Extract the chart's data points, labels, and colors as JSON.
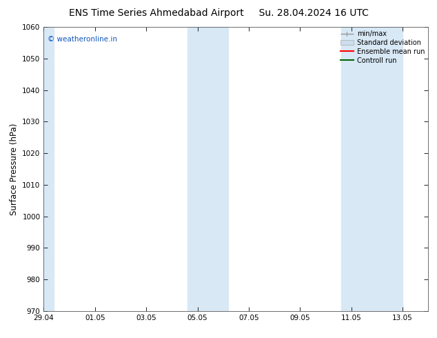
{
  "title_left": "ENS Time Series Ahmedabad Airport",
  "title_right": "Su. 28.04.2024 16 UTC",
  "ylabel": "Surface Pressure (hPa)",
  "ylim": [
    970,
    1060
  ],
  "yticks": [
    970,
    980,
    990,
    1000,
    1010,
    1020,
    1030,
    1040,
    1050,
    1060
  ],
  "xtick_labels": [
    "29.04",
    "01.05",
    "03.05",
    "05.05",
    "07.05",
    "09.05",
    "11.05",
    "13.05"
  ],
  "xtick_positions": [
    0,
    2,
    4,
    6,
    8,
    10,
    12,
    14
  ],
  "xlim": [
    0,
    15
  ],
  "shaded_bands": [
    {
      "x_start": 0.0,
      "x_end": 0.4
    },
    {
      "x_start": 5.6,
      "x_end": 7.2
    },
    {
      "x_start": 11.6,
      "x_end": 14.0
    }
  ],
  "bg_color": "#ffffff",
  "shade_color": "#d8e8f5",
  "legend_items": [
    {
      "label": "min/max",
      "color": "#999999",
      "lw": 1
    },
    {
      "label": "Standard deviation",
      "color": "#ccddef",
      "lw": 8
    },
    {
      "label": "Ensemble mean run",
      "color": "#ff0000",
      "lw": 1.5
    },
    {
      "label": "Controll run",
      "color": "#006600",
      "lw": 1.5
    }
  ],
  "watermark": "© weatheronline.in",
  "watermark_color": "#1155bb",
  "title_fontsize": 10,
  "tick_fontsize": 7.5,
  "ylabel_fontsize": 8.5,
  "legend_fontsize": 7
}
